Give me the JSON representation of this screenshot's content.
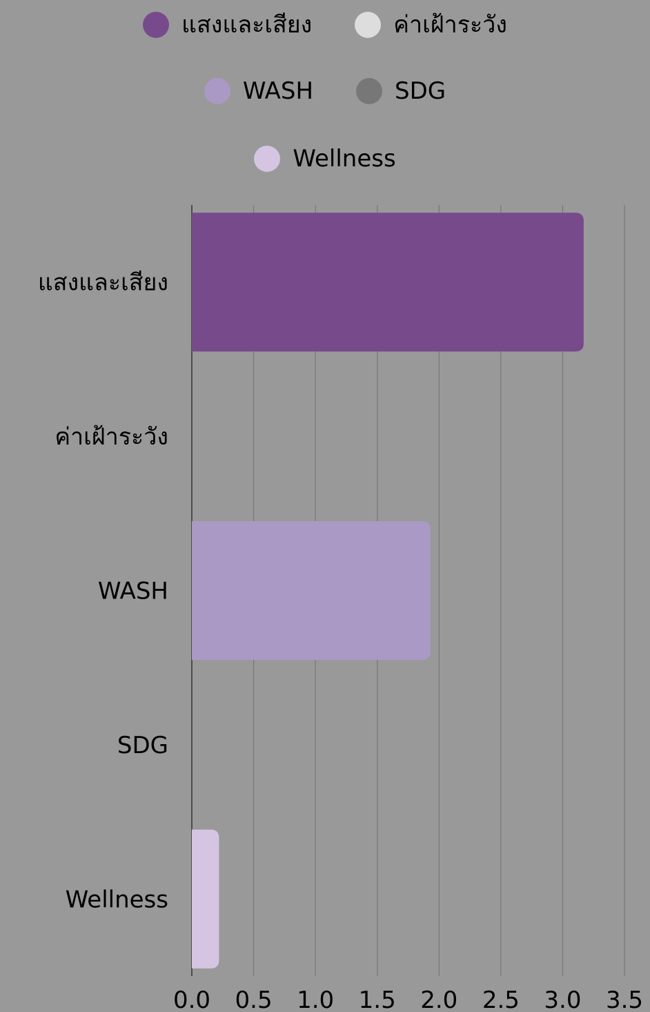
{
  "chart_data": {
    "type": "bar",
    "orientation": "horizontal",
    "categories": [
      "แสงและเสียง",
      "ค่าเฝ้าระวัง",
      "WASH",
      "SDG",
      "Wellness"
    ],
    "values": [
      3.17,
      0,
      1.93,
      0,
      0.22
    ],
    "colors": [
      "#774A8B",
      "#DDDDDD",
      "#AA98C5",
      "#777777",
      "#D5C5E2"
    ],
    "legend": [
      {
        "name": "แสงและเสียง",
        "color": "#774A8B"
      },
      {
        "name": "ค่าเฝ้าระวัง",
        "color": "#DDDDDD"
      },
      {
        "name": "WASH",
        "color": "#AA98C5"
      },
      {
        "name": "SDG",
        "color": "#777777"
      },
      {
        "name": "Wellness",
        "color": "#D5C5E2"
      }
    ],
    "legend_position": "top",
    "xlim": [
      0,
      3.5
    ],
    "x_ticks": [
      "0.0",
      "0.5",
      "1.0",
      "1.5",
      "2.0",
      "2.5",
      "3.0",
      "3.5"
    ],
    "grid": "vertical",
    "background": "#999999"
  }
}
